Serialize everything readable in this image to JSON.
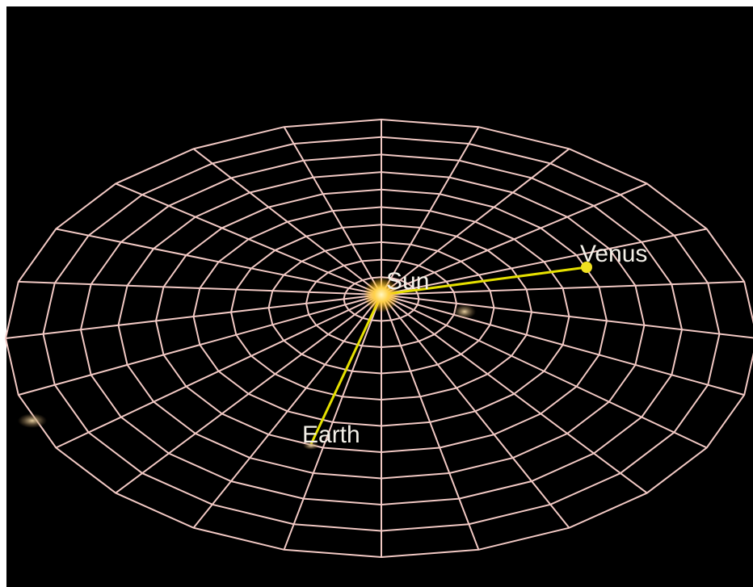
{
  "labels": {
    "venus": "Venus",
    "sun": "Sun",
    "earth": "Earth"
  }
}
